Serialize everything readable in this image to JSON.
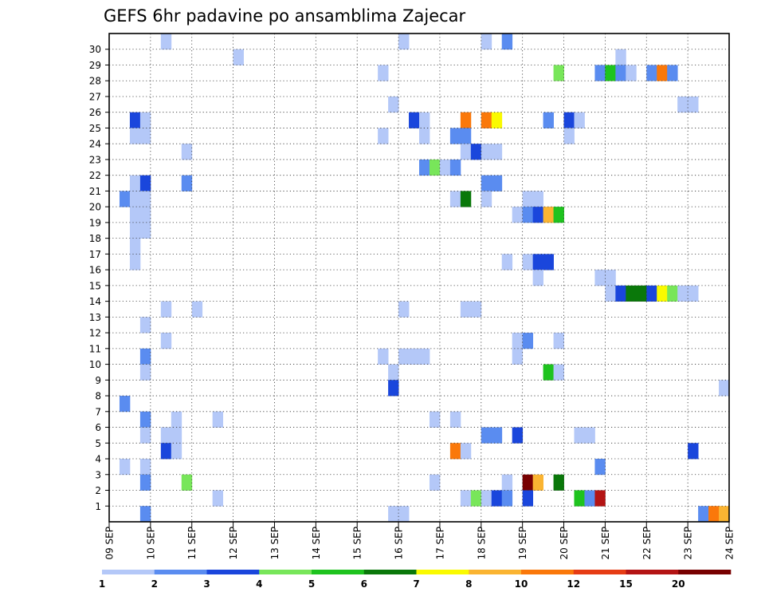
{
  "chart_data": {
    "type": "heatmap",
    "title": "GEFS 6hr padavine po ansamblima Zajecar",
    "x_tick_labels": [
      "09 SEP",
      "10 SEP",
      "11 SEP",
      "12 SEP",
      "13 SEP",
      "14 SEP",
      "15 SEP",
      "16 SEP",
      "17 SEP",
      "18 SEP",
      "19 SEP",
      "20 SEP",
      "21 SEP",
      "22 SEP",
      "23 SEP",
      "24 SEP"
    ],
    "y_tick_labels": [
      "1",
      "2",
      "3",
      "4",
      "5",
      "6",
      "7",
      "8",
      "9",
      "10",
      "11",
      "12",
      "13",
      "14",
      "15",
      "16",
      "17",
      "18",
      "19",
      "20",
      "21",
      "22",
      "23",
      "24",
      "25",
      "26",
      "27",
      "28",
      "29",
      "30"
    ],
    "xlim": [
      0,
      60
    ],
    "ylim": [
      0,
      31
    ],
    "grid": true,
    "legend": {
      "position": "bottom",
      "labels": [
        "1",
        "2",
        "3",
        "4",
        "5",
        "6",
        "7",
        "8",
        "10",
        "12",
        "15",
        "20"
      ],
      "colors": [
        "#b4c8f8",
        "#5a8cf0",
        "#1a46dc",
        "#78e65a",
        "#1ec31e",
        "#0a780a",
        "#fafa00",
        "#fab432",
        "#fa780a",
        "#e63c14",
        "#b41414",
        "#780000"
      ]
    },
    "cells": [
      [
        5,
        30,
        0
      ],
      [
        28,
        30,
        0
      ],
      [
        36,
        30,
        0
      ],
      [
        38,
        30,
        1
      ],
      [
        12,
        29,
        0
      ],
      [
        49,
        29,
        0
      ],
      [
        26,
        28,
        0
      ],
      [
        43,
        28,
        3
      ],
      [
        47,
        28,
        1
      ],
      [
        48,
        28,
        4
      ],
      [
        49,
        28,
        1
      ],
      [
        50,
        28,
        0
      ],
      [
        52,
        28,
        1
      ],
      [
        53,
        28,
        8
      ],
      [
        54,
        28,
        1
      ],
      [
        27,
        26,
        0
      ],
      [
        55,
        26,
        0
      ],
      [
        56,
        26,
        0
      ],
      [
        2,
        25,
        2
      ],
      [
        3,
        25,
        0
      ],
      [
        29,
        25,
        2
      ],
      [
        30,
        25,
        0
      ],
      [
        34,
        25,
        8
      ],
      [
        36,
        25,
        8
      ],
      [
        37,
        25,
        6
      ],
      [
        42,
        25,
        1
      ],
      [
        44,
        25,
        2
      ],
      [
        45,
        25,
        0
      ],
      [
        2,
        24,
        0
      ],
      [
        3,
        24,
        0
      ],
      [
        26,
        24,
        0
      ],
      [
        30,
        24,
        0
      ],
      [
        33,
        24,
        1
      ],
      [
        34,
        24,
        1
      ],
      [
        44,
        24,
        0
      ],
      [
        7,
        23,
        0
      ],
      [
        34,
        23,
        0
      ],
      [
        35,
        23,
        2
      ],
      [
        36,
        23,
        0
      ],
      [
        37,
        23,
        0
      ],
      [
        30,
        22,
        1
      ],
      [
        31,
        22,
        3
      ],
      [
        32,
        22,
        0
      ],
      [
        33,
        22,
        1
      ],
      [
        2,
        21,
        0
      ],
      [
        3,
        21,
        2
      ],
      [
        7,
        21,
        1
      ],
      [
        36,
        21,
        1
      ],
      [
        37,
        21,
        1
      ],
      [
        1,
        20,
        1
      ],
      [
        2,
        20,
        0
      ],
      [
        3,
        20,
        0
      ],
      [
        33,
        20,
        0
      ],
      [
        34,
        20,
        5
      ],
      [
        36,
        20,
        0
      ],
      [
        40,
        20,
        0
      ],
      [
        41,
        20,
        0
      ],
      [
        2,
        19,
        0
      ],
      [
        3,
        19,
        0
      ],
      [
        39,
        19,
        0
      ],
      [
        40,
        19,
        1
      ],
      [
        41,
        19,
        2
      ],
      [
        42,
        19,
        7
      ],
      [
        43,
        19,
        4
      ],
      [
        2,
        18,
        0
      ],
      [
        3,
        18,
        0
      ],
      [
        2,
        17,
        0
      ],
      [
        2,
        16,
        0
      ],
      [
        38,
        16,
        0
      ],
      [
        40,
        16,
        0
      ],
      [
        41,
        16,
        2
      ],
      [
        42,
        16,
        2
      ],
      [
        41,
        15,
        0
      ],
      [
        47,
        15,
        0
      ],
      [
        48,
        15,
        0
      ],
      [
        48,
        14,
        0
      ],
      [
        49,
        14,
        2
      ],
      [
        50,
        14,
        5
      ],
      [
        51,
        14,
        5
      ],
      [
        52,
        14,
        2
      ],
      [
        53,
        14,
        6
      ],
      [
        54,
        14,
        3
      ],
      [
        55,
        14,
        0
      ],
      [
        56,
        14,
        0
      ],
      [
        5,
        13,
        0
      ],
      [
        8,
        13,
        0
      ],
      [
        28,
        13,
        0
      ],
      [
        34,
        13,
        0
      ],
      [
        35,
        13,
        0
      ],
      [
        3,
        12,
        0
      ],
      [
        5,
        11,
        0
      ],
      [
        39,
        11,
        0
      ],
      [
        40,
        11,
        1
      ],
      [
        43,
        11,
        0
      ],
      [
        3,
        10,
        1
      ],
      [
        26,
        10,
        0
      ],
      [
        28,
        10,
        0
      ],
      [
        29,
        10,
        0
      ],
      [
        30,
        10,
        0
      ],
      [
        39,
        10,
        0
      ],
      [
        3,
        9,
        0
      ],
      [
        27,
        9,
        0
      ],
      [
        42,
        9,
        4
      ],
      [
        43,
        9,
        0
      ],
      [
        27,
        8,
        2
      ],
      [
        59,
        8,
        0
      ],
      [
        1,
        7,
        1
      ],
      [
        3,
        6,
        1
      ],
      [
        6,
        6,
        0
      ],
      [
        10,
        6,
        0
      ],
      [
        31,
        6,
        0
      ],
      [
        33,
        6,
        0
      ],
      [
        3,
        5,
        0
      ],
      [
        5,
        5,
        0
      ],
      [
        6,
        5,
        0
      ],
      [
        36,
        5,
        1
      ],
      [
        37,
        5,
        1
      ],
      [
        39,
        5,
        2
      ],
      [
        45,
        5,
        0
      ],
      [
        46,
        5,
        0
      ],
      [
        5,
        4,
        2
      ],
      [
        6,
        4,
        0
      ],
      [
        33,
        4,
        8
      ],
      [
        34,
        4,
        0
      ],
      [
        56,
        4,
        2
      ],
      [
        1,
        3,
        0
      ],
      [
        3,
        3,
        0
      ],
      [
        47,
        3,
        1
      ],
      [
        3,
        2,
        1
      ],
      [
        7,
        2,
        3
      ],
      [
        31,
        2,
        0
      ],
      [
        38,
        2,
        0
      ],
      [
        40,
        2,
        11
      ],
      [
        41,
        2,
        7
      ],
      [
        43,
        2,
        5
      ],
      [
        10,
        1,
        0
      ],
      [
        34,
        1,
        0
      ],
      [
        35,
        1,
        3
      ],
      [
        36,
        1,
        0
      ],
      [
        37,
        1,
        2
      ],
      [
        38,
        1,
        1
      ],
      [
        40,
        1,
        2
      ],
      [
        45,
        1,
        4
      ],
      [
        46,
        1,
        1
      ],
      [
        47,
        1,
        10
      ],
      [
        3,
        0,
        1
      ],
      [
        27,
        0,
        0
      ],
      [
        28,
        0,
        0
      ],
      [
        57,
        0,
        1
      ],
      [
        58,
        0,
        8
      ],
      [
        59,
        0,
        7
      ]
    ]
  }
}
